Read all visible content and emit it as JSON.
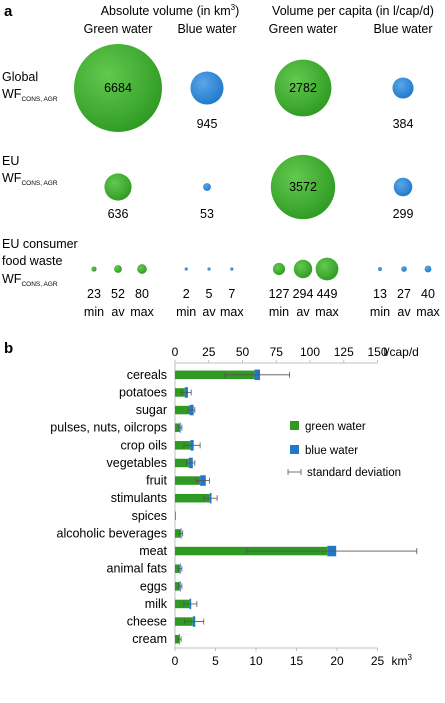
{
  "panel_a": {
    "label": "a",
    "group_headers": [
      "Absolute volume (in km",
      "Volume per capita (in l/cap/d)"
    ],
    "group_header_sup": "3",
    "group_header_close": ")",
    "subheaders": [
      "Green water",
      "Blue water",
      "Green water",
      "Blue water"
    ],
    "rows": [
      {
        "label1": "Global",
        "label2": "WF",
        "sub": "CONS, AGR"
      },
      {
        "label1": "EU",
        "label2": "WF",
        "sub": "CONS, AGR"
      },
      {
        "label1": "EU consumer",
        "label1b": "food waste",
        "label2": "WF",
        "sub": "CONS, AGR"
      }
    ],
    "colors": {
      "green": "#2e9a22",
      "blue": "#1f78c8"
    }
  },
  "panel_b": {
    "label": "b"
  },
  "chart_data": [
    {
      "type": "bubble",
      "groups": [
        {
          "name": "Global WF CONS, AGR",
          "values": [
            {
              "metric": "Absolute volume",
              "water": "Green water",
              "value": 6684,
              "label_inside": true
            },
            {
              "metric": "Absolute volume",
              "water": "Blue water",
              "value": 945
            },
            {
              "metric": "Volume per capita",
              "water": "Green water",
              "value": 2782,
              "label_inside": true
            },
            {
              "metric": "Volume per capita",
              "water": "Blue water",
              "value": 384
            }
          ]
        },
        {
          "name": "EU WF CONS, AGR",
          "values": [
            {
              "metric": "Absolute volume",
              "water": "Green water",
              "value": 636
            },
            {
              "metric": "Absolute volume",
              "water": "Blue water",
              "value": 53
            },
            {
              "metric": "Volume per capita",
              "water": "Green water",
              "value": 3572,
              "label_inside": true
            },
            {
              "metric": "Volume per capita",
              "water": "Blue water",
              "value": 299
            }
          ]
        },
        {
          "name": "EU consumer food waste WF CONS, AGR",
          "values": [
            {
              "metric": "Absolute volume",
              "water": "Green water",
              "stat": "min",
              "value": 23
            },
            {
              "metric": "Absolute volume",
              "water": "Green water",
              "stat": "av",
              "value": 52
            },
            {
              "metric": "Absolute volume",
              "water": "Green water",
              "stat": "max",
              "value": 80
            },
            {
              "metric": "Absolute volume",
              "water": "Blue water",
              "stat": "min",
              "value": 2
            },
            {
              "metric": "Absolute volume",
              "water": "Blue water",
              "stat": "av",
              "value": 5
            },
            {
              "metric": "Absolute volume",
              "water": "Blue water",
              "stat": "max",
              "value": 7
            },
            {
              "metric": "Volume per capita",
              "water": "Green water",
              "stat": "min",
              "value": 127
            },
            {
              "metric": "Volume per capita",
              "water": "Green water",
              "stat": "av",
              "value": 294
            },
            {
              "metric": "Volume per capita",
              "water": "Green water",
              "stat": "max",
              "value": 449
            },
            {
              "metric": "Volume per capita",
              "water": "Blue water",
              "stat": "min",
              "value": 13
            },
            {
              "metric": "Volume per capita",
              "water": "Blue water",
              "stat": "av",
              "value": 27
            },
            {
              "metric": "Volume per capita",
              "water": "Blue water",
              "stat": "max",
              "value": 40
            }
          ]
        }
      ]
    },
    {
      "type": "bar",
      "orientation": "horizontal",
      "stacked": true,
      "categories": [
        "cereals",
        "potatoes",
        "sugar",
        "pulses, nuts, oilcrops",
        "crop oils",
        "vegetables",
        "fruit",
        "stimulants",
        "spices",
        "alcoholic beverages",
        "meat",
        "animal fats",
        "eggs",
        "milk",
        "cheese",
        "cream"
      ],
      "series": [
        {
          "name": "green water",
          "color": "#2e9a22",
          "values": [
            9.8,
            1.2,
            1.8,
            0.6,
            1.9,
            1.7,
            3.1,
            4.3,
            0.1,
            0.7,
            18.8,
            0.6,
            0.6,
            1.8,
            2.2,
            0.5
          ]
        },
        {
          "name": "blue water",
          "color": "#1f78c8",
          "values": [
            0.7,
            0.4,
            0.5,
            0.1,
            0.4,
            0.5,
            0.7,
            0.2,
            0.0,
            0.1,
            1.1,
            0.1,
            0.1,
            0.2,
            0.3,
            0.1
          ]
        }
      ],
      "error_bars": {
        "name": "standard deviation",
        "sd": [
          4.0,
          0.6,
          0.4,
          0.2,
          1.0,
          0.5,
          0.8,
          0.8,
          0.0,
          0.2,
          10.5,
          0.2,
          0.2,
          0.8,
          1.2,
          0.2
        ]
      },
      "x_axis_bottom": {
        "unit": "km",
        "unit_sup": "3",
        "range": [
          0,
          25
        ],
        "ticks": [
          0,
          5,
          10,
          15,
          20,
          25
        ]
      },
      "x_axis_top": {
        "unit": "l/cap/d",
        "range": [
          0,
          150
        ],
        "ticks": [
          0,
          25,
          50,
          75,
          100,
          125,
          150
        ]
      },
      "legend": {
        "position": "right",
        "entries": [
          "green water",
          "blue water",
          "standard deviation"
        ]
      }
    }
  ]
}
